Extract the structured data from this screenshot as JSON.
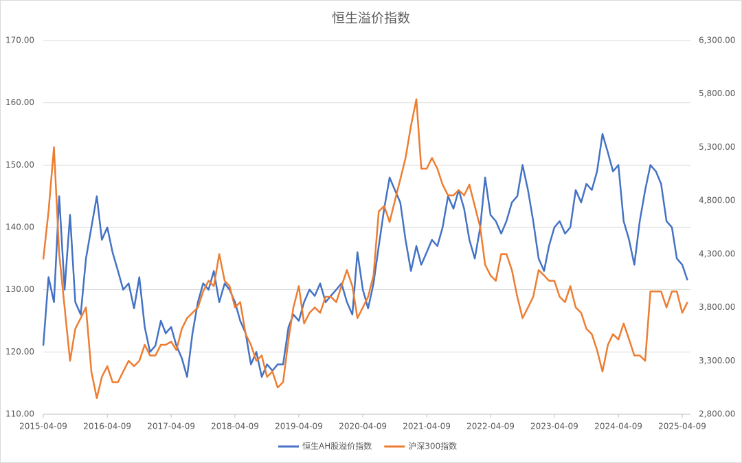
{
  "chart_data": {
    "type": "line",
    "title": "恒生溢价指数",
    "x": [
      "2015-04-09",
      "2015-05-09",
      "2015-06-09",
      "2015-07-09",
      "2015-08-09",
      "2015-09-09",
      "2015-10-09",
      "2015-11-09",
      "2015-12-09",
      "2016-01-09",
      "2016-02-09",
      "2016-03-09",
      "2016-04-09",
      "2016-05-09",
      "2016-06-09",
      "2016-07-09",
      "2016-08-09",
      "2016-09-09",
      "2016-10-09",
      "2016-11-09",
      "2016-12-09",
      "2017-01-09",
      "2017-02-09",
      "2017-03-09",
      "2017-04-09",
      "2017-05-09",
      "2017-06-09",
      "2017-07-09",
      "2017-08-09",
      "2017-09-09",
      "2017-10-09",
      "2017-11-09",
      "2017-12-09",
      "2018-01-09",
      "2018-02-09",
      "2018-03-09",
      "2018-04-09",
      "2018-05-09",
      "2018-06-09",
      "2018-07-09",
      "2018-08-09",
      "2018-09-09",
      "2018-10-09",
      "2018-11-09",
      "2018-12-09",
      "2019-01-09",
      "2019-02-09",
      "2019-03-09",
      "2019-04-09",
      "2019-05-09",
      "2019-06-09",
      "2019-07-09",
      "2019-08-09",
      "2019-09-09",
      "2019-10-09",
      "2019-11-09",
      "2019-12-09",
      "2020-01-09",
      "2020-02-09",
      "2020-03-09",
      "2020-04-09",
      "2020-05-09",
      "2020-06-09",
      "2020-07-09",
      "2020-08-09",
      "2020-09-09",
      "2020-10-09",
      "2020-11-09",
      "2020-12-09",
      "2021-01-09",
      "2021-02-09",
      "2021-03-09",
      "2021-04-09",
      "2021-05-09",
      "2021-06-09",
      "2021-07-09",
      "2021-08-09",
      "2021-09-09",
      "2021-10-09",
      "2021-11-09",
      "2021-12-09",
      "2022-01-09",
      "2022-02-09",
      "2022-03-09",
      "2022-04-09",
      "2022-05-09",
      "2022-06-09",
      "2022-07-09",
      "2022-08-09",
      "2022-09-09",
      "2022-10-09",
      "2022-11-09",
      "2022-12-09",
      "2023-01-09",
      "2023-02-09",
      "2023-03-09",
      "2023-04-09",
      "2023-05-09",
      "2023-06-09",
      "2023-07-09",
      "2023-08-09",
      "2023-09-09",
      "2023-10-09",
      "2023-11-09",
      "2023-12-09",
      "2024-01-09",
      "2024-02-09",
      "2024-03-09",
      "2024-04-09",
      "2024-05-09",
      "2024-06-09",
      "2024-07-09",
      "2024-08-09",
      "2024-09-09",
      "2024-10-09",
      "2024-11-09",
      "2024-12-09",
      "2025-01-09",
      "2025-02-09",
      "2025-03-09",
      "2025-04-09",
      "2025-05-09"
    ],
    "series": [
      {
        "name": "恒生AH股溢价指数",
        "color": "#4472c4",
        "values": [
          121,
          132,
          128,
          145,
          130,
          142,
          128,
          126,
          135,
          140,
          145,
          138,
          140,
          136,
          133,
          130,
          131,
          127,
          132,
          124,
          120,
          121,
          125,
          123,
          124,
          121,
          119,
          116,
          123,
          128,
          131,
          130,
          133,
          128,
          131,
          130,
          128,
          125,
          123,
          118,
          120,
          116,
          118,
          117,
          118,
          118,
          124,
          126,
          125,
          128,
          130,
          129,
          131,
          128,
          129,
          130,
          131,
          128,
          126,
          136,
          130,
          127,
          131,
          137,
          143,
          148,
          146,
          144,
          138,
          133,
          137,
          134,
          136,
          138,
          137,
          140,
          145,
          143,
          146,
          143,
          138,
          135,
          140,
          148,
          142,
          141,
          139,
          141,
          144,
          145,
          150,
          146,
          141,
          135,
          133,
          137,
          140,
          141,
          139,
          140,
          146,
          144,
          147,
          146,
          149,
          155,
          152,
          149,
          150,
          141,
          138,
          134,
          141,
          146,
          150,
          149,
          147,
          141,
          140,
          135,
          134,
          131.5
        ]
      },
      {
        "name": "沪深300指数",
        "color": "#ed7d31",
        "axis": "y2",
        "values": [
          4250,
          4700,
          5300,
          4300,
          3800,
          3300,
          3600,
          3700,
          3800,
          3200,
          2950,
          3150,
          3250,
          3100,
          3100,
          3200,
          3300,
          3250,
          3300,
          3450,
          3350,
          3350,
          3450,
          3450,
          3480,
          3400,
          3600,
          3700,
          3750,
          3800,
          3950,
          4050,
          4000,
          4300,
          4050,
          4000,
          3800,
          3850,
          3550,
          3450,
          3300,
          3350,
          3150,
          3200,
          3050,
          3100,
          3500,
          3800,
          4000,
          3650,
          3750,
          3800,
          3750,
          3900,
          3900,
          3850,
          4000,
          4150,
          4000,
          3700,
          3800,
          3900,
          4100,
          4700,
          4750,
          4600,
          4800,
          5000,
          5200,
          5500,
          5750,
          5100,
          5100,
          5200,
          5100,
          4950,
          4850,
          4850,
          4900,
          4850,
          4950,
          4750,
          4550,
          4200,
          4100,
          4050,
          4300,
          4300,
          4150,
          3900,
          3700,
          3800,
          3900,
          4150,
          4100,
          4050,
          4050,
          3900,
          3850,
          4000,
          3800,
          3750,
          3600,
          3550,
          3400,
          3200,
          3450,
          3550,
          3500,
          3650,
          3500,
          3350,
          3350,
          3300,
          3950,
          3950,
          3950,
          3800,
          3950,
          3950,
          3750,
          3850
        ]
      }
    ],
    "xlim": [
      "2015-04-09",
      "2025-05-26"
    ],
    "xticks": [
      "2015-04-09",
      "2016-04-09",
      "2017-04-09",
      "2018-04-09",
      "2019-04-09",
      "2020-04-09",
      "2021-04-09",
      "2022-04-09",
      "2023-04-09",
      "2024-04-09",
      "2025-04-09"
    ],
    "ylim": [
      110,
      170
    ],
    "yticks": [
      {
        "value": 110,
        "label": "110.00"
      },
      {
        "value": 120,
        "label": "120.00"
      },
      {
        "value": 130,
        "label": "130.00"
      },
      {
        "value": 140,
        "label": "140.00"
      },
      {
        "value": 150,
        "label": "150.00"
      },
      {
        "value": 160,
        "label": "160.00"
      },
      {
        "value": 170,
        "label": "170.00"
      }
    ],
    "y2lim": [
      2800,
      6300
    ],
    "y2ticks": [
      {
        "value": 2800,
        "label": "2,800.00"
      },
      {
        "value": 3300,
        "label": "3,300.00"
      },
      {
        "value": 3800,
        "label": "3,800.00"
      },
      {
        "value": 4300,
        "label": "4,300.00"
      },
      {
        "value": 4800,
        "label": "4,800.00"
      },
      {
        "value": 5300,
        "label": "5,300.00"
      },
      {
        "value": 5800,
        "label": "5,800.00"
      },
      {
        "value": 6300,
        "label": "6,300.00"
      }
    ],
    "grid": true,
    "legend": "bottom"
  }
}
